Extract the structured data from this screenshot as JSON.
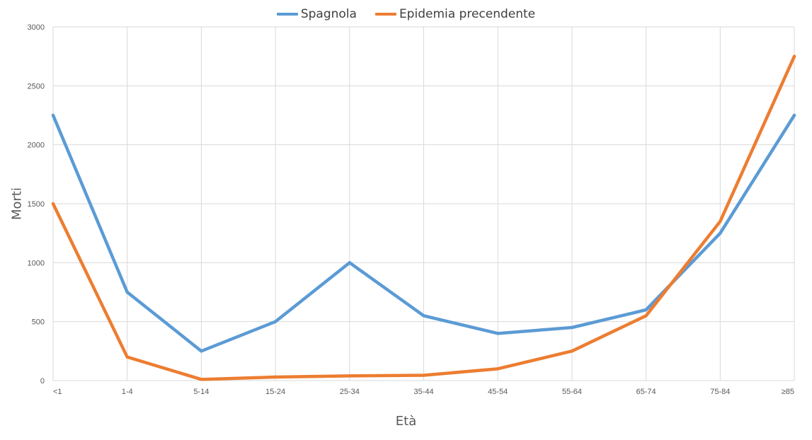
{
  "chart_data": {
    "type": "line",
    "categories": [
      "<1",
      "1-4",
      "5-14",
      "15-24",
      "25-34",
      "35-44",
      "45-54",
      "55-64",
      "65-74",
      "75-84",
      "≥85"
    ],
    "series": [
      {
        "name": "Spagnola",
        "color": "#5b9bd5",
        "values": [
          2250,
          750,
          250,
          500,
          1000,
          550,
          400,
          450,
          600,
          1250,
          2250
        ]
      },
      {
        "name": "Epidemia precendente",
        "color": "#ed7d31",
        "values": [
          1500,
          200,
          10,
          30,
          40,
          45,
          100,
          250,
          550,
          1350,
          2750
        ]
      }
    ],
    "xlabel": "Età",
    "ylabel": "Morti",
    "ylim": [
      0,
      3000
    ],
    "yticks": [
      0,
      500,
      1000,
      1500,
      2000,
      2500,
      3000
    ],
    "grid": true,
    "legend_position": "top-center"
  }
}
